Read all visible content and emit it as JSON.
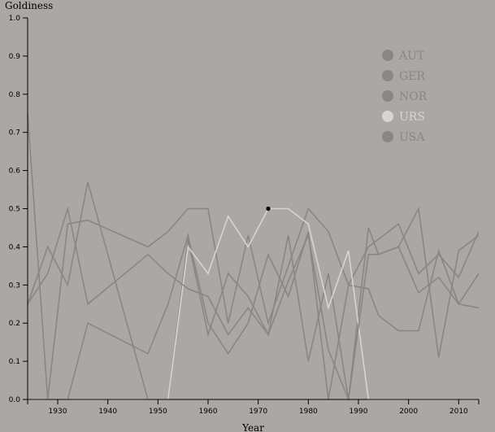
{
  "chart_data": {
    "type": "line",
    "title": "",
    "xlabel": "Year",
    "ylabel": "Goldiness",
    "xlim": [
      1924,
      2014
    ],
    "ylim": [
      0,
      1
    ],
    "x_ticks": [
      1930,
      1940,
      1950,
      1960,
      1970,
      1980,
      1990,
      2000,
      2010
    ],
    "y_ticks": [
      "0.0",
      "0.1",
      "0.2",
      "0.3",
      "0.4",
      "0.5",
      "0.6",
      "0.7",
      "0.8",
      "0.9",
      "1.0"
    ],
    "legend_position": "top-right",
    "highlight_point": {
      "x": 1972,
      "y": 0.5
    },
    "series": [
      {
        "name": "AUT",
        "color": "#8a8684",
        "points": [
          [
            1924,
            0.25
          ],
          [
            1928,
            0.4
          ],
          [
            1932,
            0.3
          ],
          [
            1936,
            0.57
          ],
          [
            1948,
            0.0
          ],
          [
            1952,
            0.0
          ],
          [
            1956,
            0.42
          ],
          [
            1960,
            0.17
          ],
          [
            1964,
            0.33
          ],
          [
            1968,
            0.27
          ],
          [
            1972,
            0.17
          ],
          [
            1976,
            0.43
          ],
          [
            1980,
            0.1
          ],
          [
            1984,
            0.33
          ],
          [
            1988,
            0.0
          ],
          [
            1992,
            0.45
          ],
          [
            1994,
            0.38
          ],
          [
            1998,
            0.4
          ],
          [
            2002,
            0.28
          ],
          [
            2006,
            0.32
          ],
          [
            2010,
            0.25
          ],
          [
            2014,
            0.24
          ]
        ]
      },
      {
        "name": "GER",
        "color": "#8a8684",
        "points": [
          [
            1928,
            0.0
          ],
          [
            1932,
            0.46
          ],
          [
            1936,
            0.47
          ],
          [
            1948,
            0.4
          ],
          [
            1952,
            0.44
          ],
          [
            1956,
            0.5
          ],
          [
            1960,
            0.5
          ],
          [
            1964,
            0.2
          ],
          [
            1968,
            0.43
          ],
          [
            1972,
            0.2
          ],
          [
            1976,
            0.35
          ],
          [
            1980,
            0.5
          ],
          [
            1984,
            0.44
          ],
          [
            1988,
            0.3
          ],
          [
            1992,
            0.4
          ],
          [
            1994,
            0.42
          ],
          [
            1998,
            0.46
          ],
          [
            2002,
            0.33
          ],
          [
            2006,
            0.38
          ],
          [
            2010,
            0.32
          ],
          [
            2014,
            0.44
          ]
        ]
      },
      {
        "name": "NOR",
        "color": "#8a8684",
        "points": [
          [
            1924,
            0.75
          ],
          [
            1928,
            0.0
          ],
          [
            1932,
            0.0
          ],
          [
            1936,
            0.2
          ],
          [
            1948,
            0.12
          ],
          [
            1952,
            0.25
          ],
          [
            1956,
            0.43
          ],
          [
            1960,
            0.2
          ],
          [
            1964,
            0.12
          ],
          [
            1968,
            0.2
          ],
          [
            1972,
            0.38
          ],
          [
            1976,
            0.27
          ],
          [
            1980,
            0.44
          ],
          [
            1984,
            0.0
          ],
          [
            1988,
            0.3
          ],
          [
            1992,
            0.29
          ],
          [
            1994,
            0.22
          ],
          [
            1998,
            0.18
          ],
          [
            2002,
            0.18
          ],
          [
            2006,
            0.39
          ],
          [
            2010,
            0.25
          ],
          [
            2014,
            0.33
          ]
        ]
      },
      {
        "name": "URS",
        "color": "#d7d4d2",
        "points": [
          [
            1924,
            0.0
          ],
          [
            1952,
            0.0
          ],
          [
            1956,
            0.4
          ],
          [
            1960,
            0.33
          ],
          [
            1964,
            0.48
          ],
          [
            1968,
            0.4
          ],
          [
            1972,
            0.5
          ],
          [
            1976,
            0.5
          ],
          [
            1980,
            0.46
          ],
          [
            1984,
            0.24
          ],
          [
            1988,
            0.39
          ],
          [
            1992,
            0.0
          ],
          [
            2014,
            0.0
          ]
        ]
      },
      {
        "name": "USA",
        "color": "#8a8684",
        "points": [
          [
            1924,
            0.25
          ],
          [
            1928,
            0.33
          ],
          [
            1932,
            0.5
          ],
          [
            1936,
            0.25
          ],
          [
            1948,
            0.38
          ],
          [
            1952,
            0.33
          ],
          [
            1956,
            0.29
          ],
          [
            1960,
            0.27
          ],
          [
            1964,
            0.17
          ],
          [
            1968,
            0.24
          ],
          [
            1972,
            0.17
          ],
          [
            1976,
            0.31
          ],
          [
            1980,
            0.43
          ],
          [
            1984,
            0.13
          ],
          [
            1988,
            0.0
          ],
          [
            1992,
            0.38
          ],
          [
            1994,
            0.38
          ],
          [
            1998,
            0.4
          ],
          [
            2002,
            0.5
          ],
          [
            2006,
            0.11
          ],
          [
            2010,
            0.39
          ],
          [
            2014,
            0.43
          ]
        ]
      }
    ]
  }
}
